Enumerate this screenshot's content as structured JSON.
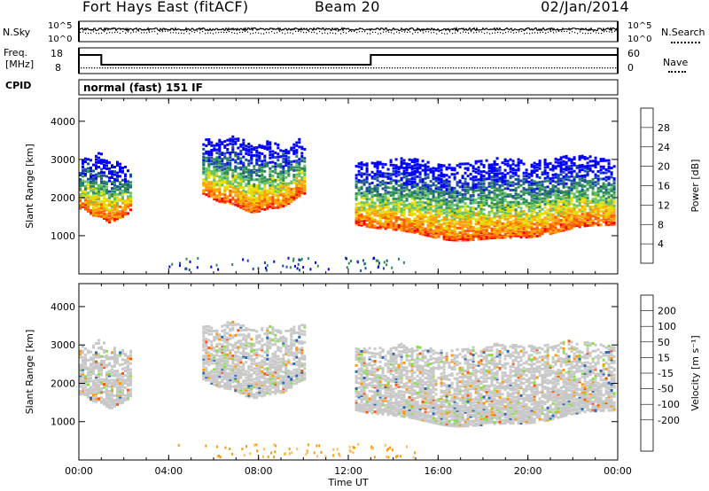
{
  "header": {
    "station": "Fort Hays East (fitACF)",
    "beam": "Beam 20",
    "date": "02/Jan/2014"
  },
  "top_panels": {
    "nsky_label": "N.Sky",
    "nsky_ticks": [
      "10^5",
      "10^0"
    ],
    "nsearch_label": "N.Search",
    "nsearch_ticks": [
      "10^5",
      "10^0"
    ],
    "freq_label": "Freq.",
    "freq_unit": "[MHz]",
    "freq_ticks": [
      "18",
      "8"
    ],
    "nave_label": "Nave",
    "nave_ticks": [
      "60",
      "0"
    ],
    "cpid_label": "CPID",
    "cpid_text": "normal (fast) 151 IF"
  },
  "colors": {
    "power": [
      "#0000ff",
      "#1d4f9e",
      "#2e8b57",
      "#66c266",
      "#e6dd00",
      "#ffa000",
      "#ff5a00",
      "#ff0000"
    ],
    "velocity": [
      "#ff0000",
      "#ff5500",
      "#ff9900",
      "#ffbb55",
      "#c8c8c8",
      "#c8c8c8",
      "#88dd44",
      "#33aa33",
      "#2a6ab0",
      "#1a2fa8"
    ]
  },
  "chart_data": [
    {
      "type": "heatmap",
      "title": "Power",
      "xlabel": "Time UT",
      "ylabel": "Slant Range [km]",
      "xlim": [
        0,
        24
      ],
      "ylim": [
        0,
        4600
      ],
      "x_tick_labels": [
        "00:00",
        "04:00",
        "08:00",
        "12:00",
        "16:00",
        "20:00",
        "00:00"
      ],
      "y_ticks": [
        1000,
        2000,
        3000,
        4000
      ],
      "colorbar": {
        "label": "Power [dB]",
        "ticks": [
          4,
          8,
          12,
          16,
          20,
          24,
          28
        ],
        "range": [
          0,
          32
        ]
      },
      "echo_regions": [
        {
          "t_start": 0.0,
          "t_end": 2.3,
          "range_low": 1300,
          "range_high": 3200,
          "peak_db": 30
        },
        {
          "t_start": 5.5,
          "t_end": 10.0,
          "range_low": 1600,
          "range_high": 3700,
          "peak_db": 30
        },
        {
          "t_start": 12.3,
          "t_end": 23.9,
          "range_low": 850,
          "range_high": 3200,
          "peak_db": 32
        }
      ]
    },
    {
      "type": "heatmap",
      "title": "Velocity",
      "xlabel": "Time UT",
      "ylabel": "Slant Range [km]",
      "xlim": [
        0,
        24
      ],
      "ylim": [
        0,
        4600
      ],
      "x_tick_labels": [
        "00:00",
        "04:00",
        "08:00",
        "12:00",
        "16:00",
        "20:00",
        "00:00"
      ],
      "y_ticks": [
        1000,
        2000,
        3000,
        4000
      ],
      "colorbar": {
        "label": "Velocity [m s⁻¹]",
        "ticks": [
          200,
          100,
          50,
          15,
          -15,
          -50,
          -100,
          -200
        ],
        "range": [
          -250,
          250
        ]
      },
      "echo_regions": [
        {
          "t_start": 0.0,
          "t_end": 2.3,
          "range_low": 1300,
          "range_high": 3200,
          "typical_velocity": 0
        },
        {
          "t_start": 5.5,
          "t_end": 10.0,
          "range_low": 1600,
          "range_high": 3700,
          "typical_velocity": 0
        },
        {
          "t_start": 12.3,
          "t_end": 23.9,
          "range_low": 850,
          "range_high": 3200,
          "typical_velocity": 0
        }
      ]
    }
  ]
}
